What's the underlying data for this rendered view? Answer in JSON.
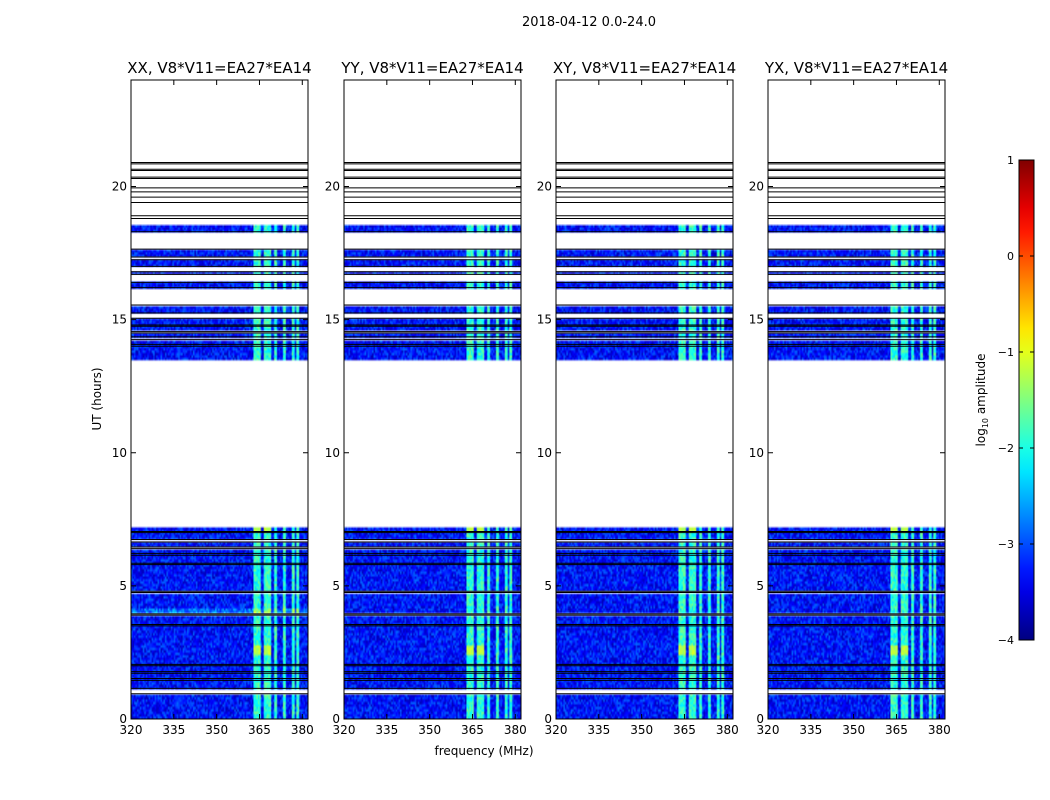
{
  "figure": {
    "suptitle": "2018-04-12 0.0-24.0",
    "xlabel": "frequency (MHz)",
    "ylabel": "UT (hours)"
  },
  "chart_data": {
    "type": "heatmap",
    "x_range_mhz": [
      320,
      382
    ],
    "y_range_hours": [
      0,
      24
    ],
    "xticks": [
      320,
      335,
      350,
      365,
      380
    ],
    "xtick_labels": [
      "320",
      "335",
      "350",
      "365",
      "380"
    ],
    "yticks": [
      0,
      5,
      10,
      15,
      20
    ],
    "ytick_labels": [
      "0",
      "5",
      "10",
      "15",
      "20"
    ],
    "colormap": "jet",
    "color_range_log10": [
      -4,
      1
    ],
    "colorbar": {
      "label_main": "log",
      "label_sub": "10",
      "label_rest": " amplitude",
      "ticks": [
        1,
        0,
        -1,
        -2,
        -3,
        -4
      ],
      "tick_labels": [
        "1",
        "0",
        "−1",
        "−2",
        "−3",
        "−4"
      ]
    },
    "panels": [
      {
        "title": "XX, V8*V11=EA27*EA14"
      },
      {
        "title": "YY, V8*V11=EA27*EA14"
      },
      {
        "title": "XY, V8*V11=EA27*EA14"
      },
      {
        "title": "YX, V8*V11=EA27*EA14"
      }
    ],
    "data_blocks_hours": [
      [
        0.0,
        7.2
      ],
      [
        13.5,
        18.6
      ]
    ],
    "flagged_gaps_hours": [
      [
        0.95,
        1.15
      ],
      [
        1.45,
        1.52
      ],
      [
        1.72,
        1.78
      ],
      [
        2.0,
        2.05
      ],
      [
        3.5,
        3.55
      ],
      [
        3.9,
        3.95
      ],
      [
        4.75,
        4.8
      ],
      [
        5.8,
        5.85
      ],
      [
        6.15,
        6.22
      ],
      [
        6.4,
        6.46
      ],
      [
        6.65,
        6.74
      ],
      [
        7.0,
        7.04
      ],
      [
        14.0,
        14.07
      ],
      [
        14.25,
        14.35
      ],
      [
        14.5,
        14.55
      ],
      [
        14.75,
        14.8
      ],
      [
        15.05,
        15.25
      ],
      [
        15.55,
        16.2
      ],
      [
        16.4,
        16.7
      ],
      [
        16.8,
        17.0
      ],
      [
        17.25,
        17.35
      ],
      [
        17.65,
        18.3
      ]
    ],
    "rfi_channels_mhz": [
      [
        363.0,
        365.5
      ],
      [
        366.5,
        369.0
      ],
      [
        370.0,
        371.0
      ],
      [
        373.0,
        374.5
      ],
      [
        376.5,
        377.5
      ],
      [
        378.0,
        379.0
      ]
    ],
    "base_level_log10": -3.3,
    "rfi_level_log10": -1.9,
    "hot_level_log10": -1.2,
    "hot_times_hours": [
      [
        2.4,
        2.8
      ],
      [
        7.0,
        7.2
      ]
    ]
  }
}
